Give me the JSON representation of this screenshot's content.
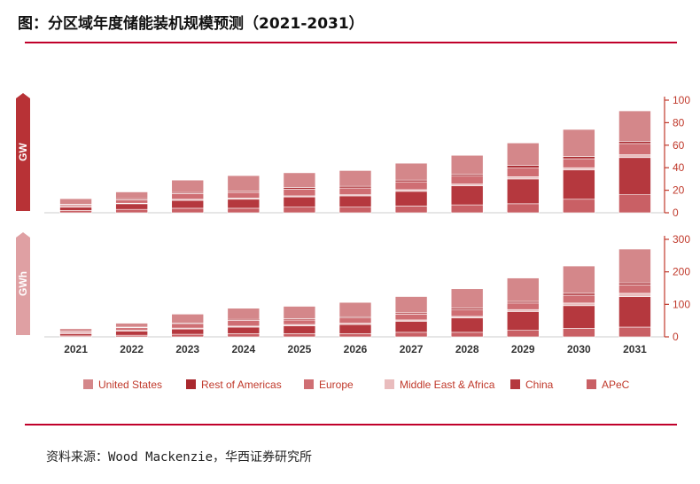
{
  "header": {
    "title": "图：分区域年度储能装机规模预测（2021-2031）"
  },
  "footer": {
    "source": "资料来源：Wood Mackenzie，华西证券研究所"
  },
  "colors": {
    "accent": "#c0002a",
    "axis": "#c0392b",
    "tick_text": "#c0392b",
    "gw_banner": "#b83236",
    "gwh_banner": "#dfa0a3"
  },
  "chart_data": [
    {
      "type": "bar",
      "stacked": true,
      "unit_label": "GW",
      "categories": [
        "2021",
        "2022",
        "2023",
        "2024",
        "2025",
        "2026",
        "2027",
        "2028",
        "2029",
        "2030",
        "2031"
      ],
      "ylim": [
        0,
        100
      ],
      "yticks": [
        0,
        20,
        40,
        60,
        80,
        100
      ],
      "series": [
        {
          "name": "APeC",
          "color": "#c96065",
          "values": [
            2,
            3,
            4,
            4,
            5,
            5,
            6,
            7,
            8,
            12,
            16
          ]
        },
        {
          "name": "China",
          "color": "#b5383e",
          "values": [
            3,
            5,
            7,
            8,
            9,
            10,
            13,
            17,
            22,
            26,
            33
          ]
        },
        {
          "name": "Middle East & Africa",
          "color": "#e9bcbd",
          "values": [
            0.5,
            0.5,
            1,
            1,
            1,
            1,
            1.5,
            1.5,
            2,
            2,
            2.5
          ]
        },
        {
          "name": "Europe",
          "color": "#cf6e73",
          "values": [
            1.5,
            3,
            5,
            5,
            6,
            6,
            7,
            7,
            8,
            8,
            10
          ]
        },
        {
          "name": "Rest of Americas",
          "color": "#a9282e",
          "values": [
            0.5,
            1,
            1,
            1,
            1.5,
            1.5,
            1.5,
            1.5,
            2,
            2,
            2
          ]
        },
        {
          "name": "United States",
          "color": "#d4878a",
          "values": [
            5,
            6,
            11,
            14,
            13,
            14,
            15,
            17,
            20,
            24,
            27
          ]
        }
      ]
    },
    {
      "type": "bar",
      "stacked": true,
      "unit_label": "GWh",
      "categories": [
        "2021",
        "2022",
        "2023",
        "2024",
        "2025",
        "2026",
        "2027",
        "2028",
        "2029",
        "2030",
        "2031"
      ],
      "ylim": [
        0,
        300
      ],
      "yticks": [
        0,
        100,
        200,
        300
      ],
      "series": [
        {
          "name": "APeC",
          "color": "#c96065",
          "values": [
            3,
            5,
            8,
            10,
            10,
            10,
            14,
            14,
            20,
            26,
            30
          ]
        },
        {
          "name": "China",
          "color": "#b5383e",
          "values": [
            7,
            13,
            16,
            20,
            24,
            28,
            34,
            44,
            58,
            70,
            94
          ]
        },
        {
          "name": "Middle East & Africa",
          "color": "#e9bcbd",
          "values": [
            2,
            2,
            3,
            3,
            4,
            4,
            4,
            5,
            6,
            8,
            10
          ]
        },
        {
          "name": "Europe",
          "color": "#cf6e73",
          "values": [
            4,
            8,
            12,
            18,
            14,
            16,
            18,
            20,
            20,
            24,
            26
          ]
        },
        {
          "name": "Rest of Americas",
          "color": "#a9282e",
          "values": [
            1,
            2,
            3,
            3,
            4,
            4,
            4,
            5,
            5,
            6,
            6
          ]
        },
        {
          "name": "United States",
          "color": "#d4878a",
          "values": [
            8,
            12,
            28,
            34,
            38,
            44,
            50,
            60,
            72,
            84,
            104
          ]
        }
      ]
    }
  ],
  "legend": [
    {
      "label": "United States",
      "color": "#d4878a"
    },
    {
      "label": "Rest of Americas",
      "color": "#a9282e"
    },
    {
      "label": "Europe",
      "color": "#cf6e73"
    },
    {
      "label": "Middle East & Africa",
      "color": "#e9bcbd"
    },
    {
      "label": "China",
      "color": "#b5383e"
    },
    {
      "label": "APeC",
      "color": "#c96065"
    }
  ]
}
